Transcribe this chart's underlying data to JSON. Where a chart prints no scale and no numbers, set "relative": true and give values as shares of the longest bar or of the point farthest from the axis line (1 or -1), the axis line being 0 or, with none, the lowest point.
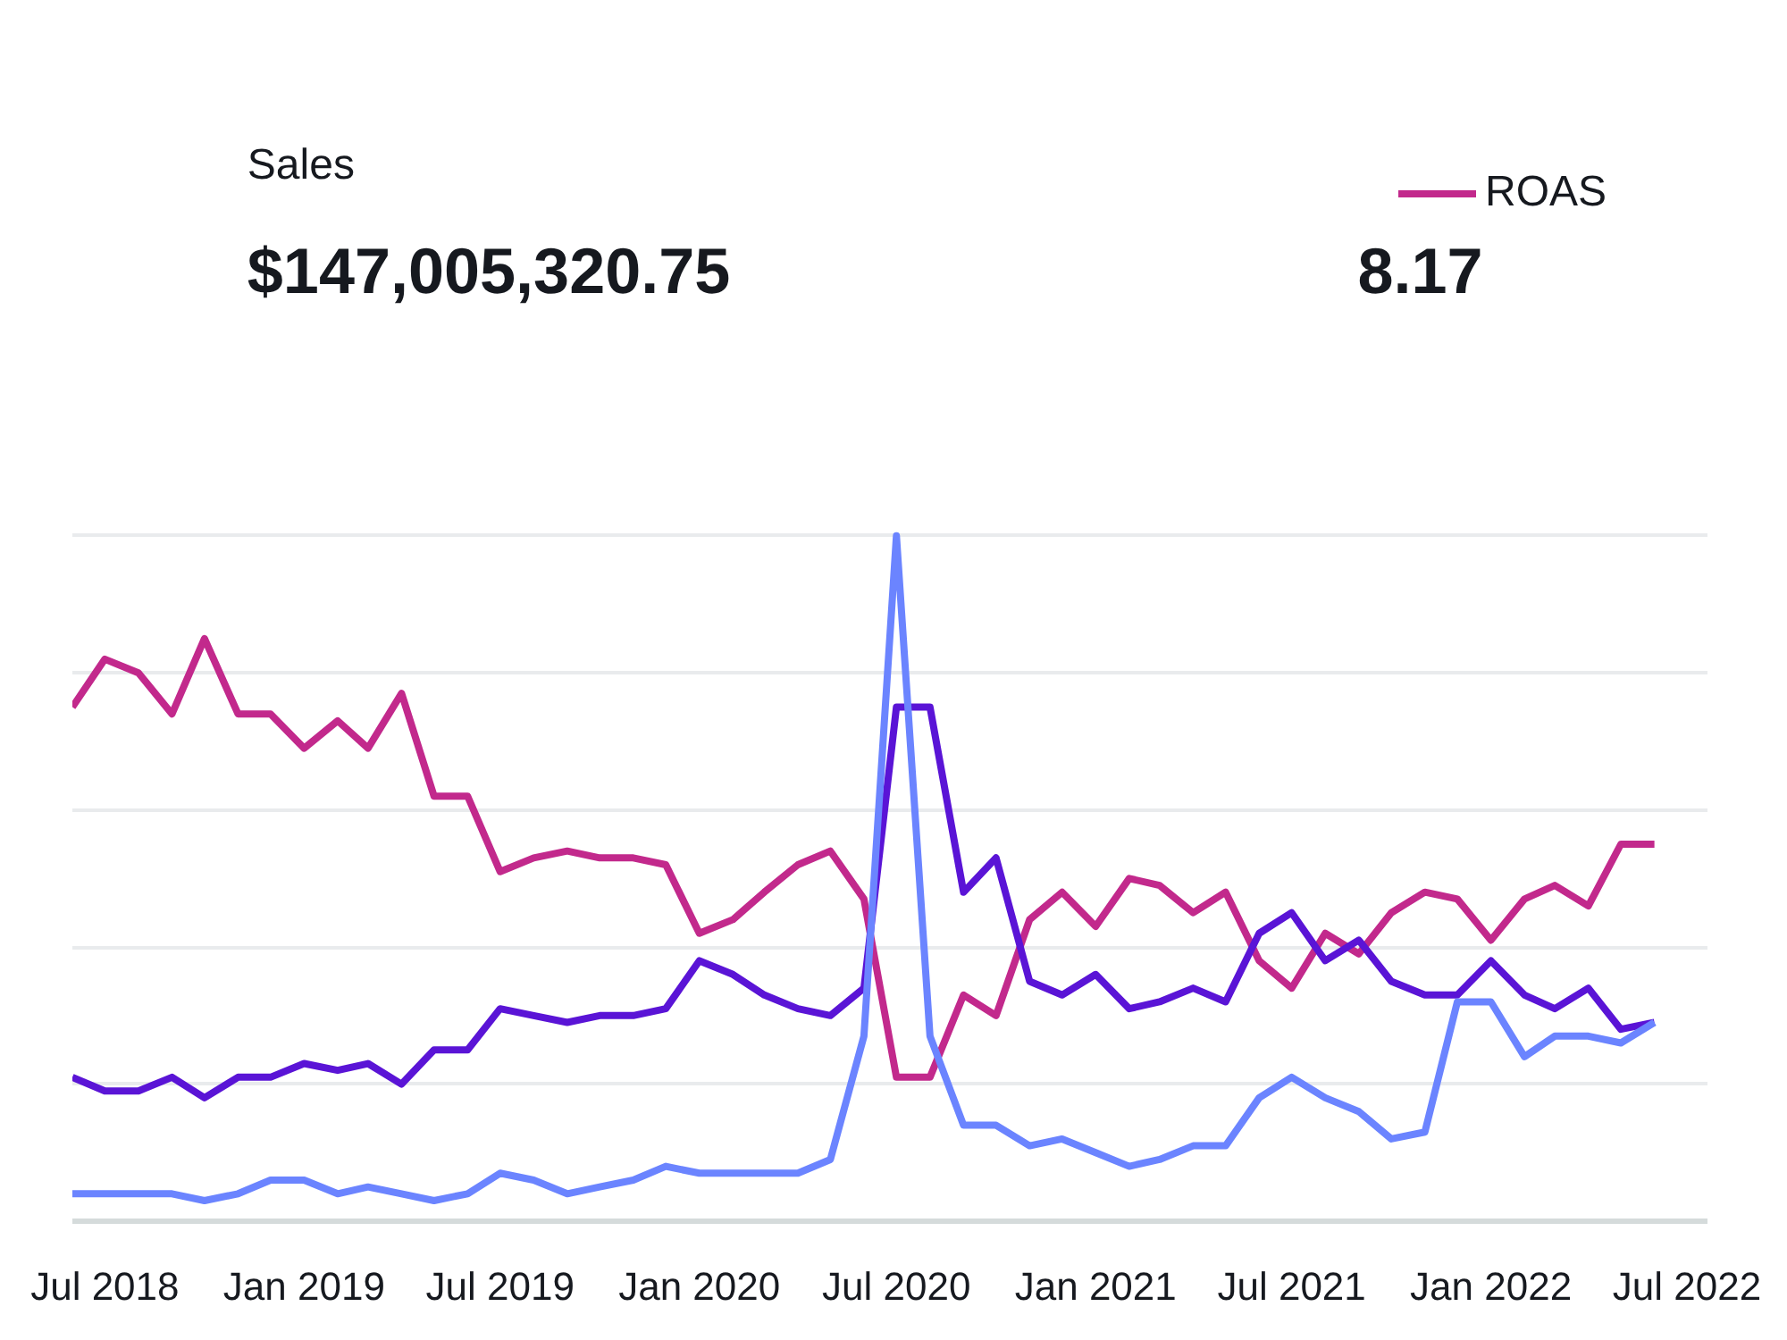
{
  "chart_data": {
    "type": "line",
    "relative": true,
    "grid": "y",
    "line_style": "solid",
    "marker": "none",
    "legend": "top right",
    "annotations": [
      "Sales",
      "$147,005,320.75",
      "8.17"
    ],
    "x": [
      "2018-06",
      "2018-07",
      "2018-08",
      "2018-09",
      "2018-10",
      "2018-11",
      "2018-12",
      "2019-01",
      "2019-02",
      "2019-03",
      "2019-04",
      "2019-05",
      "2019-06",
      "2019-07",
      "2019-08",
      "2019-09",
      "2019-10",
      "2019-11",
      "2019-12",
      "2020-01",
      "2020-02",
      "2020-03",
      "2020-04",
      "2020-05",
      "2020-06",
      "2020-07",
      "2020-08",
      "2020-09",
      "2020-10",
      "2020-11",
      "2020-12",
      "2021-01",
      "2021-02",
      "2021-03",
      "2021-04",
      "2021-05",
      "2021-06",
      "2021-07",
      "2021-08",
      "2021-09",
      "2021-10",
      "2021-11",
      "2021-12",
      "2022-01",
      "2022-02",
      "2022-03",
      "2022-04",
      "2022-05",
      "2022-06"
    ],
    "xlim": [
      "2018-06-01",
      "2022-07-20"
    ],
    "xticks": [
      {
        "value": "2018-07-01",
        "label": "Jul 2018"
      },
      {
        "value": "2019-01-01",
        "label": "Jan 2019"
      },
      {
        "value": "2019-07-01",
        "label": "Jul 2019"
      },
      {
        "value": "2020-01-01",
        "label": "Jan 2020"
      },
      {
        "value": "2020-07-01",
        "label": "Jul 2020"
      },
      {
        "value": "2021-01-01",
        "label": "Jan 2021"
      },
      {
        "value": "2021-07-01",
        "label": "Jul 2021"
      },
      {
        "value": "2022-01-01",
        "label": "Jan 2022"
      },
      {
        "value": "2022-07-01",
        "label": "Jul 2022"
      }
    ],
    "tick_labels": "x",
    "series": [
      {
        "name": "ROAS",
        "color": "#c2298c",
        "values": [
          0.75,
          0.82,
          0.8,
          0.74,
          0.85,
          0.74,
          0.74,
          0.69,
          0.73,
          0.69,
          0.77,
          0.62,
          0.62,
          0.51,
          0.53,
          0.54,
          0.53,
          0.53,
          0.52,
          0.42,
          0.44,
          0.48,
          0.52,
          0.54,
          0.47,
          0.21,
          0.21,
          0.33,
          0.3,
          0.44,
          0.48,
          0.43,
          0.5,
          0.49,
          0.45,
          0.48,
          0.38,
          0.34,
          0.42,
          0.39,
          0.45,
          0.48,
          0.47,
          0.41,
          0.47,
          0.49,
          0.46,
          0.55,
          0.55
        ]
      },
      {
        "color": "#5a14d6",
        "values": [
          0.21,
          0.19,
          0.19,
          0.21,
          0.18,
          0.21,
          0.21,
          0.23,
          0.22,
          0.23,
          0.2,
          0.25,
          0.25,
          0.31,
          0.3,
          0.29,
          0.3,
          0.3,
          0.31,
          0.38,
          0.36,
          0.33,
          0.31,
          0.3,
          0.34,
          0.75,
          0.75,
          0.48,
          0.53,
          0.35,
          0.33,
          0.36,
          0.31,
          0.32,
          0.34,
          0.32,
          0.42,
          0.45,
          0.38,
          0.41,
          0.35,
          0.33,
          0.33,
          0.38,
          0.33,
          0.31,
          0.34,
          0.28,
          0.29
        ]
      },
      {
        "color": "#6b84ff",
        "values": [
          0.04,
          0.04,
          0.04,
          0.04,
          0.03,
          0.04,
          0.06,
          0.06,
          0.04,
          0.05,
          0.04,
          0.03,
          0.04,
          0.07,
          0.06,
          0.04,
          0.05,
          0.06,
          0.08,
          0.07,
          0.07,
          0.07,
          0.07,
          0.09,
          0.27,
          1.0,
          0.27,
          0.14,
          0.14,
          0.11,
          0.12,
          0.1,
          0.08,
          0.09,
          0.11,
          0.11,
          0.18,
          0.21,
          0.18,
          0.16,
          0.12,
          0.13,
          0.32,
          0.32,
          0.24,
          0.27,
          0.27,
          0.26,
          0.29
        ]
      }
    ]
  }
}
